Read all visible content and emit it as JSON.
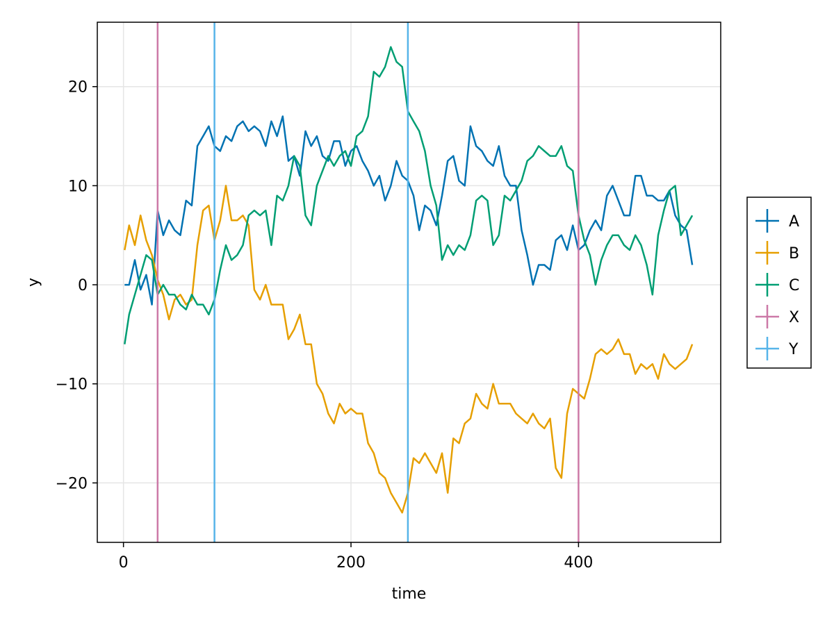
{
  "chart_data": {
    "type": "line",
    "title": "",
    "xlabel": "time",
    "ylabel": "y",
    "xlim": [
      -23,
      525
    ],
    "ylim": [
      -26,
      26.5
    ],
    "xticks": [
      0,
      200,
      400
    ],
    "yticks": [
      -20,
      -10,
      0,
      10,
      20
    ],
    "grid": true,
    "legend_position": "right",
    "series": [
      {
        "name": "A",
        "color": "#0072b2",
        "x": [
          1,
          5,
          10,
          15,
          20,
          25,
          30,
          35,
          40,
          45,
          50,
          55,
          60,
          65,
          70,
          75,
          80,
          85,
          90,
          95,
          100,
          105,
          110,
          115,
          120,
          125,
          130,
          135,
          140,
          145,
          150,
          155,
          160,
          165,
          170,
          175,
          180,
          185,
          190,
          195,
          200,
          205,
          210,
          215,
          220,
          225,
          230,
          235,
          240,
          245,
          250,
          255,
          260,
          265,
          270,
          275,
          280,
          285,
          290,
          295,
          300,
          305,
          310,
          315,
          320,
          325,
          330,
          335,
          340,
          345,
          350,
          355,
          360,
          365,
          370,
          375,
          380,
          385,
          390,
          395,
          400,
          405,
          410,
          415,
          420,
          425,
          430,
          435,
          440,
          445,
          450,
          455,
          460,
          465,
          470,
          475,
          480,
          485,
          490,
          495,
          500
        ],
        "y": [
          0,
          0,
          2.5,
          -0.5,
          1,
          -2,
          7.5,
          5,
          6.5,
          5.5,
          5,
          8.5,
          8,
          14,
          15,
          16,
          14,
          13.5,
          15,
          14.5,
          16,
          16.5,
          15.5,
          16,
          15.5,
          14,
          16.5,
          15,
          17,
          12.5,
          13,
          11,
          15.5,
          14,
          15,
          13,
          12.5,
          14.5,
          14.5,
          12,
          13.5,
          14,
          12.5,
          11.5,
          10,
          11,
          8.5,
          10,
          12.5,
          11,
          10.5,
          9,
          5.5,
          8,
          7.5,
          6,
          9,
          12.5,
          13,
          10.5,
          10,
          16,
          14,
          13.5,
          12.5,
          12,
          14,
          11,
          10,
          10,
          5.5,
          3,
          0,
          2,
          2,
          1.5,
          4.5,
          5,
          3.5,
          6,
          3.5,
          4,
          5.5,
          6.5,
          5.5,
          9,
          10,
          8.5,
          7,
          7,
          11,
          11,
          9,
          9,
          8.5,
          8.5,
          9.5,
          7,
          6,
          5.5,
          2
        ]
      },
      {
        "name": "B",
        "color": "#e69f00",
        "x": [
          1,
          5,
          10,
          15,
          20,
          25,
          30,
          35,
          40,
          45,
          50,
          55,
          60,
          65,
          70,
          75,
          80,
          85,
          90,
          95,
          100,
          105,
          110,
          115,
          120,
          125,
          130,
          135,
          140,
          145,
          150,
          155,
          160,
          165,
          170,
          175,
          180,
          185,
          190,
          195,
          200,
          205,
          210,
          215,
          220,
          225,
          230,
          235,
          240,
          245,
          250,
          255,
          260,
          265,
          270,
          275,
          280,
          285,
          290,
          295,
          300,
          305,
          310,
          315,
          320,
          325,
          330,
          335,
          340,
          345,
          350,
          355,
          360,
          365,
          370,
          375,
          380,
          385,
          390,
          395,
          400,
          405,
          410,
          415,
          420,
          425,
          430,
          435,
          440,
          445,
          450,
          455,
          460,
          465,
          470,
          475,
          480,
          485,
          490,
          495,
          500
        ],
        "y": [
          3.5,
          6,
          4,
          7,
          4.5,
          3,
          0.5,
          -1,
          -3.5,
          -1.5,
          -1,
          -2,
          -1.5,
          4,
          7.5,
          8,
          4.5,
          6.5,
          10,
          6.5,
          6.5,
          7,
          6,
          -0.5,
          -1.5,
          0,
          -2,
          -2,
          -2,
          -5.5,
          -4.5,
          -3,
          -6,
          -6,
          -10,
          -11,
          -13,
          -14,
          -12,
          -13,
          -12.5,
          -13,
          -13,
          -16,
          -17,
          -19,
          -19.5,
          -21,
          -22,
          -23,
          -21,
          -17.5,
          -18,
          -17,
          -18,
          -19,
          -17,
          -21,
          -15.5,
          -16,
          -14,
          -13.5,
          -11,
          -12,
          -12.5,
          -10,
          -12,
          -12,
          -12,
          -13,
          -13.5,
          -14,
          -13,
          -14,
          -14.5,
          -13.5,
          -18.5,
          -19.5,
          -13,
          -10.5,
          -11,
          -11.5,
          -9.5,
          -7,
          -6.5,
          -7,
          -6.5,
          -5.5,
          -7,
          -7,
          -9,
          -8,
          -8.5,
          -8,
          -9.5,
          -7,
          -8,
          -8.5,
          -8,
          -7.5,
          -6
        ]
      },
      {
        "name": "C",
        "color": "#009e73",
        "x": [
          1,
          5,
          10,
          15,
          20,
          25,
          30,
          35,
          40,
          45,
          50,
          55,
          60,
          65,
          70,
          75,
          80,
          85,
          90,
          95,
          100,
          105,
          110,
          115,
          120,
          125,
          130,
          135,
          140,
          145,
          150,
          155,
          160,
          165,
          170,
          175,
          180,
          185,
          190,
          195,
          200,
          205,
          210,
          215,
          220,
          225,
          230,
          235,
          240,
          245,
          250,
          255,
          260,
          265,
          270,
          275,
          280,
          285,
          290,
          295,
          300,
          305,
          310,
          315,
          320,
          325,
          330,
          335,
          340,
          345,
          350,
          355,
          360,
          365,
          370,
          375,
          380,
          385,
          390,
          395,
          400,
          405,
          410,
          415,
          420,
          425,
          430,
          435,
          440,
          445,
          450,
          455,
          460,
          465,
          470,
          475,
          480,
          485,
          490,
          495,
          500
        ],
        "y": [
          -6,
          -3,
          -1,
          1,
          3,
          2.5,
          -1,
          0,
          -1,
          -1,
          -2,
          -2.5,
          -1,
          -2,
          -2,
          -3,
          -1.5,
          1.5,
          4,
          2.5,
          3,
          4,
          7,
          7.5,
          7,
          7.5,
          4,
          9,
          8.5,
          10,
          13,
          12,
          7,
          6,
          10,
          11.5,
          13,
          12,
          13,
          13.5,
          12,
          15,
          15.5,
          17,
          21.5,
          21,
          22,
          24,
          22.5,
          22,
          17.5,
          16.5,
          15.5,
          13.5,
          10,
          8,
          2.5,
          4,
          3,
          4,
          3.5,
          5,
          8.5,
          9,
          8.5,
          4,
          5,
          9,
          8.5,
          9.5,
          10.5,
          12.5,
          13,
          14,
          13.5,
          13,
          13,
          14,
          12,
          11.5,
          7,
          4.5,
          3,
          0,
          2.5,
          4,
          5,
          5,
          4,
          3.5,
          5,
          4,
          2,
          -1,
          5,
          7.5,
          9.5,
          10,
          5,
          6,
          7
        ]
      },
      {
        "name": "X",
        "color": "#cc79a7",
        "x": [
          30,
          30,
          null,
          400,
          400
        ],
        "y": [
          -26,
          26.5,
          null,
          -26,
          26.5
        ]
      },
      {
        "name": "Y",
        "color": "#56b4e9",
        "x": [
          80,
          80,
          null,
          250,
          250
        ],
        "y": [
          -26,
          26.5,
          null,
          -26,
          26.5
        ]
      }
    ]
  }
}
